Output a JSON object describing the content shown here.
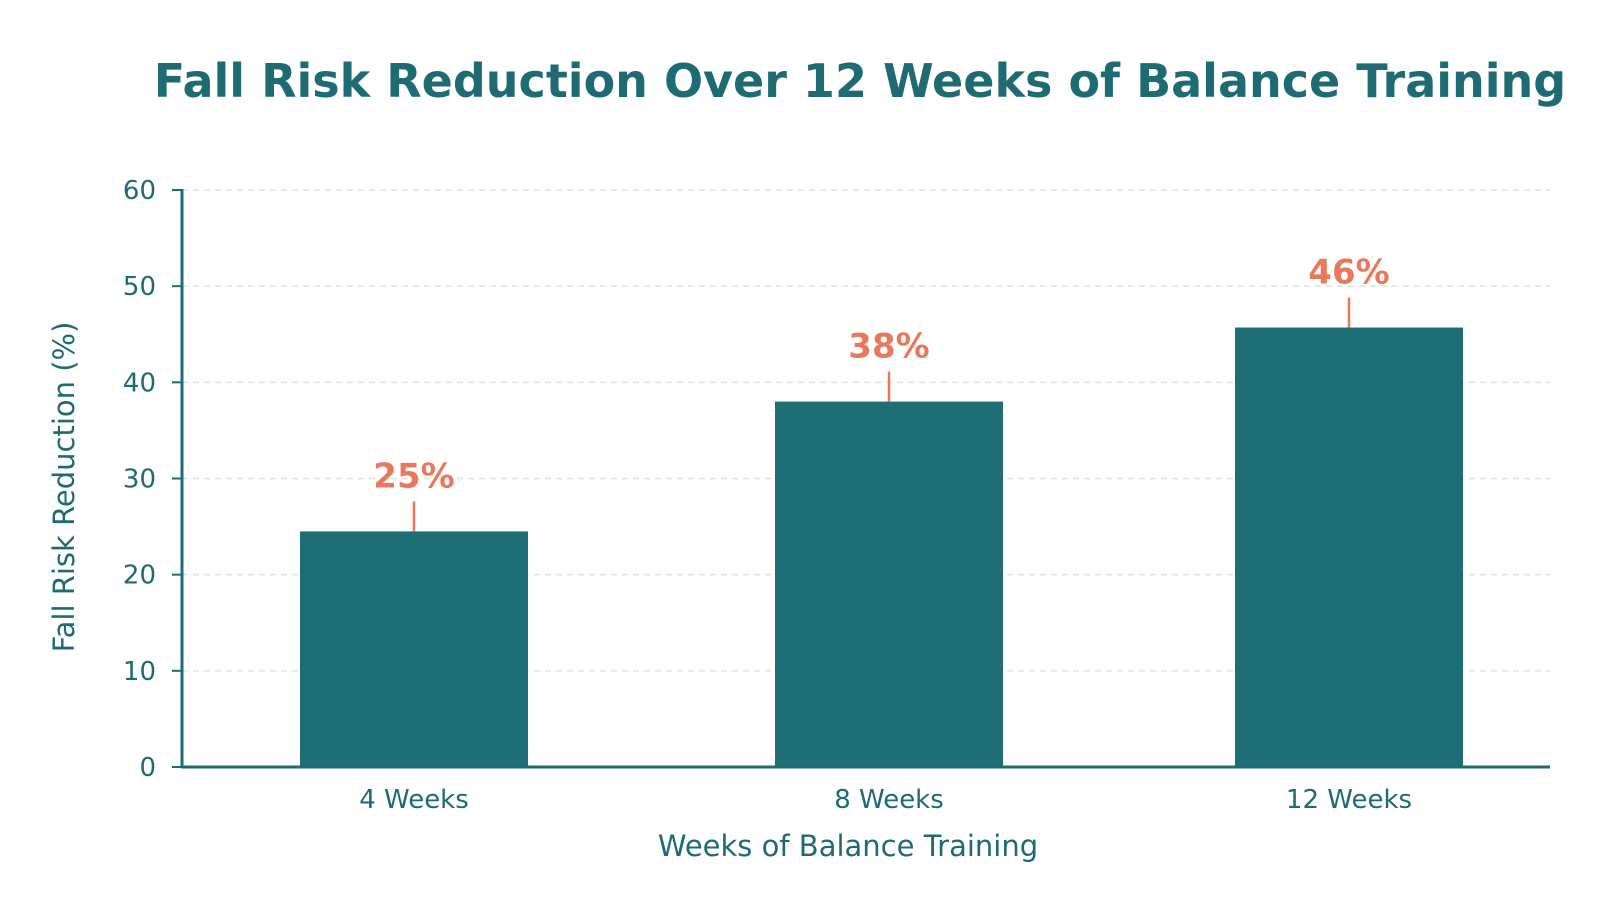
{
  "chart_data": {
    "type": "bar",
    "title": "Fall Risk Reduction Over 12 Weeks of Balance Training",
    "xlabel": "Weeks of Balance Training",
    "ylabel": "Fall Risk Reduction (%)",
    "categories": [
      "4 Weeks",
      "8 Weeks",
      "12 Weeks"
    ],
    "values": [
      24.5,
      38,
      45.7
    ],
    "data_labels": [
      "25%",
      "38%",
      "46%"
    ],
    "ylim": [
      0,
      60
    ],
    "yticks": [
      "0",
      "10",
      "20",
      "30",
      "40",
      "50",
      "60"
    ],
    "grid": true,
    "legend": "none",
    "colors": {
      "bar": "#1e6e76",
      "axis": "#1f6b73",
      "text": "#1f6b73",
      "data_label": "#e8795c",
      "grid": "#d6e6e6"
    }
  }
}
